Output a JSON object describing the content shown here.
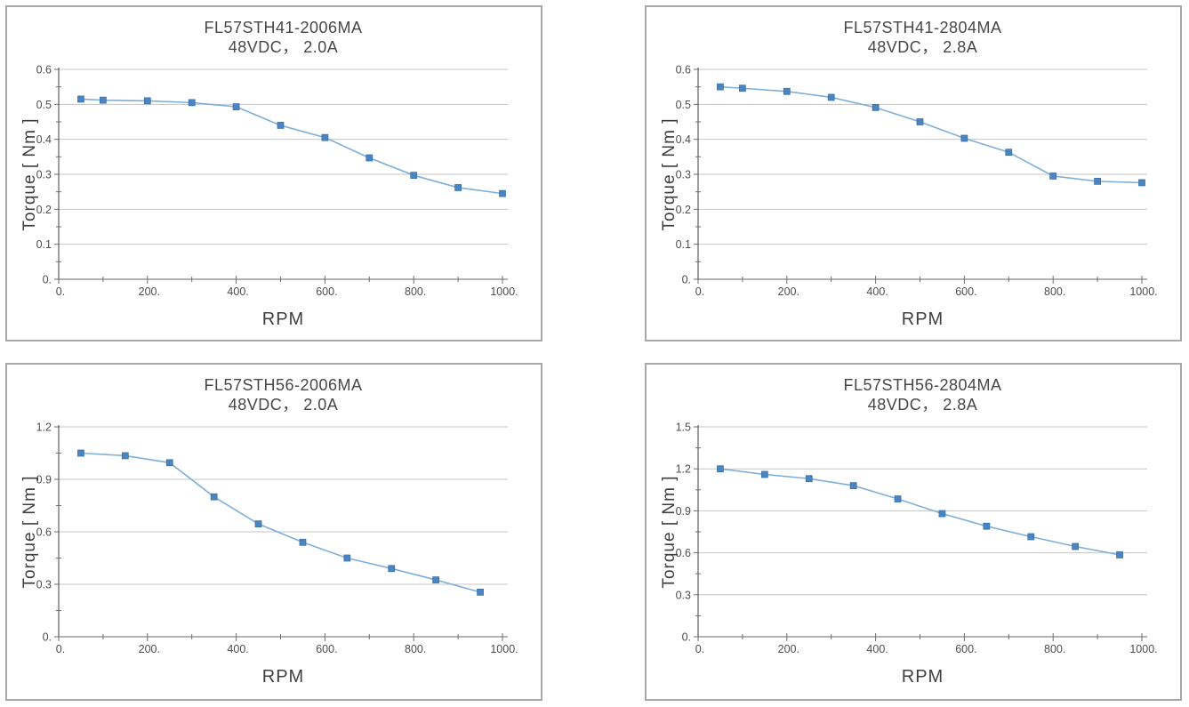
{
  "page": {
    "background_color": "#ffffff",
    "panel_border_color": "#a8a8a8"
  },
  "chart_data": [
    {
      "type": "line",
      "name": "FL57STH41-2006MA",
      "title_line1": "FL57STH41-2006MA",
      "title_line2": "48VDC， 2.0A",
      "xlabel": "RPM",
      "ylabel": "Torque [ Nm ]",
      "x": [
        50,
        100,
        200,
        300,
        400,
        500,
        600,
        700,
        800,
        900,
        1000
      ],
      "values": [
        0.515,
        0.512,
        0.51,
        0.505,
        0.493,
        0.44,
        0.405,
        0.347,
        0.297,
        0.262,
        0.245
      ],
      "xlim": [
        0,
        1000
      ],
      "ylim": [
        0,
        0.6
      ],
      "x_major_ticks": [
        0,
        200,
        400,
        600,
        800,
        1000
      ],
      "x_tick_labels": [
        "0.",
        "200.",
        "400.",
        "600.",
        "800.",
        "1000."
      ],
      "x_minor_ticks": [
        100,
        300,
        500,
        700,
        900
      ],
      "y_major_ticks": [
        0,
        0.1,
        0.2,
        0.3,
        0.4,
        0.5,
        0.6
      ],
      "y_tick_labels": [
        "0.",
        "0.1",
        "0.2",
        "0.3",
        "0.4",
        "0.5",
        "0.6"
      ],
      "y_minor_ticks": [
        0.05,
        0.15,
        0.25,
        0.35,
        0.45,
        0.55
      ],
      "grid": true,
      "legend": "none",
      "line_color": "#7fafd8",
      "marker_color": "#4a85c0",
      "marker_edge_color": "#3c70a4"
    },
    {
      "type": "line",
      "name": "FL57STH41-2804MA",
      "title_line1": "FL57STH41-2804MA",
      "title_line2": "48VDC， 2.8A",
      "xlabel": "RPM",
      "ylabel": "Torque [ Nm ]",
      "x": [
        50,
        100,
        200,
        300,
        400,
        500,
        600,
        700,
        800,
        900,
        1000
      ],
      "values": [
        0.55,
        0.546,
        0.537,
        0.52,
        0.491,
        0.45,
        0.403,
        0.363,
        0.295,
        0.28,
        0.276
      ],
      "xlim": [
        0,
        1000
      ],
      "ylim": [
        0,
        0.6
      ],
      "x_major_ticks": [
        0,
        200,
        400,
        600,
        800,
        1000
      ],
      "x_tick_labels": [
        "0.",
        "200.",
        "400.",
        "600.",
        "800.",
        "1000."
      ],
      "x_minor_ticks": [
        100,
        300,
        500,
        700,
        900
      ],
      "y_major_ticks": [
        0,
        0.1,
        0.2,
        0.3,
        0.4,
        0.5,
        0.6
      ],
      "y_tick_labels": [
        "0.",
        "0.1",
        "0.2",
        "0.3",
        "0.4",
        "0.5",
        "0.6"
      ],
      "y_minor_ticks": [
        0.05,
        0.15,
        0.25,
        0.35,
        0.45,
        0.55
      ],
      "grid": true,
      "legend": "none",
      "line_color": "#7fafd8",
      "marker_color": "#4a85c0",
      "marker_edge_color": "#3c70a4"
    },
    {
      "type": "line",
      "name": "FL57STH56-2006MA",
      "title_line1": "FL57STH56-2006MA",
      "title_line2": "48VDC， 2.0A",
      "xlabel": "RPM",
      "ylabel": "Torque [ Nm ]",
      "x": [
        50,
        150,
        250,
        350,
        450,
        550,
        650,
        750,
        850,
        950
      ],
      "values": [
        1.05,
        1.035,
        0.995,
        0.8,
        0.645,
        0.54,
        0.45,
        0.39,
        0.325,
        0.255
      ],
      "xlim": [
        0,
        1000
      ],
      "ylim": [
        0,
        1.2
      ],
      "x_major_ticks": [
        0,
        200,
        400,
        600,
        800,
        1000
      ],
      "x_tick_labels": [
        "0.",
        "200.",
        "400.",
        "600.",
        "800.",
        "1000."
      ],
      "x_minor_ticks": [
        100,
        300,
        500,
        700,
        900
      ],
      "y_major_ticks": [
        0,
        0.3,
        0.6,
        0.9,
        1.2
      ],
      "y_tick_labels": [
        "0.",
        "0.3",
        "0.6",
        "0.9",
        "1.2"
      ],
      "y_minor_ticks": [
        0.15,
        0.45,
        0.75,
        1.05
      ],
      "grid": true,
      "legend": "none",
      "line_color": "#7fafd8",
      "marker_color": "#4a85c0",
      "marker_edge_color": "#3c70a4"
    },
    {
      "type": "line",
      "name": "FL57STH56-2804MA",
      "title_line1": "FL57STH56-2804MA",
      "title_line2": "48VDC， 2.8A",
      "xlabel": "RPM",
      "ylabel": "Torque [ Nm ]",
      "x": [
        50,
        150,
        250,
        350,
        450,
        550,
        650,
        750,
        850,
        950
      ],
      "values": [
        1.2,
        1.16,
        1.13,
        1.08,
        0.985,
        0.88,
        0.79,
        0.715,
        0.645,
        0.585
      ],
      "xlim": [
        0,
        1000
      ],
      "ylim": [
        0,
        1.5
      ],
      "x_major_ticks": [
        0,
        200,
        400,
        600,
        800,
        1000
      ],
      "x_tick_labels": [
        "0.",
        "200.",
        "400.",
        "600.",
        "800.",
        "1000."
      ],
      "x_minor_ticks": [
        100,
        300,
        500,
        700,
        900
      ],
      "y_major_ticks": [
        0,
        0.3,
        0.6,
        0.9,
        1.2,
        1.5
      ],
      "y_tick_labels": [
        "0.",
        "0.3",
        "0.6",
        "0.9",
        "1.2",
        "1.5"
      ],
      "y_minor_ticks": [
        0.15,
        0.45,
        0.75,
        1.05,
        1.35
      ],
      "grid": true,
      "legend": "none",
      "line_color": "#7fafd8",
      "marker_color": "#4a85c0",
      "marker_edge_color": "#3c70a4"
    }
  ]
}
